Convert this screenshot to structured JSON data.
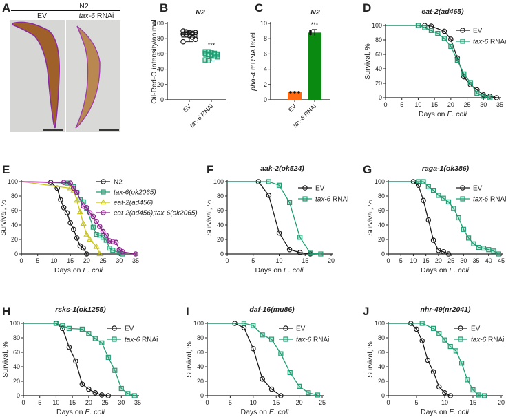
{
  "colors": {
    "black": "#1a1a1a",
    "green": "#1f9e74",
    "yellow": "#c9c41c",
    "purple": "#8e1f8e",
    "orange": "#ff6a13",
    "darkgreen": "#0b8a12"
  },
  "panel_a": {
    "letter": "A",
    "strain": "N2",
    "left_label": "EV",
    "right_label_italic": "tax-6",
    "right_label_rest": " RNAi"
  },
  "chart_data": [
    {
      "id": "B",
      "type": "box",
      "letter": "B",
      "title": "N2",
      "ylabel": "Oil-Red-O intensity/animal",
      "ylim": [
        0,
        100
      ],
      "yticks": [
        0,
        20,
        40,
        60,
        80,
        100
      ],
      "categories": [
        {
          "label": "EV",
          "italic": ""
        },
        {
          "label": " RNAi",
          "italic": "tax-6"
        }
      ],
      "series": [
        {
          "name": "EV",
          "color": "#1a1a1a",
          "marker": "circle",
          "values": [
            90,
            89,
            88,
            87,
            88,
            86,
            85,
            84,
            82,
            79,
            76
          ],
          "q1": 82,
          "median": 85,
          "q3": 88,
          "min": 76,
          "max": 90
        },
        {
          "name": "tax-6 RNAi",
          "color": "#1f9e74",
          "marker": "square",
          "values": [
            63,
            63,
            62,
            61,
            60,
            61,
            59,
            58,
            57,
            56,
            52,
            51
          ],
          "q1": 56,
          "median": 60,
          "q3": 62,
          "min": 51,
          "max": 63,
          "annotation": "***"
        }
      ]
    },
    {
      "id": "C",
      "type": "bar",
      "letter": "C",
      "title": "N2",
      "ylabel_italic": "pha-4",
      "ylabel_rest": " mRNA level",
      "ylim": [
        0,
        10
      ],
      "yticks": [
        0,
        2,
        4,
        6,
        8,
        10
      ],
      "categories": [
        {
          "label": "EV",
          "italic": ""
        },
        {
          "label": " RNAi",
          "italic": "tax-6"
        }
      ],
      "values": [
        1.0,
        8.8
      ],
      "errors": [
        0.05,
        0.4
      ],
      "points": [
        [
          1,
          1,
          1
        ],
        [
          9.0,
          8.6,
          8.8
        ]
      ],
      "bar_colors": [
        "#ff6a13",
        "#0b8a12"
      ],
      "annotations": [
        "",
        "***"
      ]
    },
    {
      "id": "D",
      "type": "line",
      "letter": "D",
      "title": "eat-2(ad465)",
      "xlabel": "Days on ",
      "xlabel_italic": "E. coli",
      "ylabel": "Survival, %",
      "xlim": [
        0,
        35
      ],
      "ylim": [
        0,
        100
      ],
      "xticks": [
        0,
        5,
        10,
        15,
        20,
        25,
        30,
        35
      ],
      "yticks": [
        0,
        20,
        40,
        60,
        80,
        100
      ],
      "series": [
        {
          "name": "EV",
          "italic": "",
          "color": "#1a1a1a",
          "marker": "circle",
          "x": [
            12,
            14,
            18,
            20,
            22,
            24,
            26,
            28,
            30,
            32,
            34
          ],
          "y": [
            100,
            99,
            92,
            81,
            55,
            29,
            18,
            11,
            4,
            2,
            0
          ]
        },
        {
          "name": " RNAi",
          "italic": "tax-6",
          "color": "#1f9e74",
          "marker": "square",
          "x": [
            10,
            12,
            14,
            16,
            18,
            20,
            22,
            24,
            26,
            28,
            30,
            32
          ],
          "y": [
            100,
            97,
            93,
            89,
            82,
            71,
            52,
            33,
            21,
            6,
            2,
            0
          ]
        }
      ]
    },
    {
      "id": "E",
      "type": "line",
      "letter": "E",
      "title": "",
      "xlabel": "Days on ",
      "xlabel_italic": "E. coli",
      "ylabel": "Survival, %",
      "xlim": [
        0,
        35
      ],
      "ylim": [
        0,
        100
      ],
      "xticks": [
        0,
        5,
        10,
        15,
        20,
        25,
        30,
        35
      ],
      "yticks": [
        0,
        20,
        40,
        60,
        80,
        100
      ],
      "series": [
        {
          "name": "N2",
          "italic": "",
          "color": "#1a1a1a",
          "marker": "circle",
          "x": [
            9,
            11,
            12,
            13,
            14,
            15,
            16,
            17,
            18,
            19,
            20
          ],
          "y": [
            99,
            91,
            75,
            64,
            57,
            43,
            34,
            22,
            11,
            8,
            0
          ]
        },
        {
          "name": "",
          "italic": "tax-6(ok2065)",
          "color": "#1f9e74",
          "marker": "square",
          "x": [
            14,
            16,
            17,
            18,
            19,
            20,
            22,
            23,
            24,
            25,
            26,
            27,
            28,
            30,
            31
          ],
          "y": [
            98,
            93,
            85,
            75,
            72,
            63,
            37,
            27,
            26,
            23,
            19,
            8,
            5,
            2,
            0
          ]
        },
        {
          "name": "",
          "italic": "eat-2(ad456)",
          "color": "#c9c41c",
          "marker": "triangle",
          "x": [
            15,
            16,
            17,
            18,
            19,
            20,
            21,
            23,
            24
          ],
          "y": [
            91,
            88,
            74,
            58,
            42,
            27,
            20,
            10,
            0
          ]
        },
        {
          "name": "",
          "italic": "eat-2(ad456);tax-6(ok2065)",
          "color": "#8e1f8e",
          "marker": "hex",
          "x": [
            13,
            15,
            16,
            17,
            19,
            20,
            21,
            22,
            23,
            24,
            25,
            26,
            27,
            28,
            29,
            30,
            31,
            35
          ],
          "y": [
            99,
            98,
            91,
            85,
            66,
            64,
            57,
            52,
            45,
            38,
            31,
            26,
            18,
            17,
            16,
            6,
            3,
            0
          ]
        }
      ]
    },
    {
      "id": "F",
      "type": "line",
      "letter": "F",
      "title": "aak-2(ok524)",
      "xlabel": "Days on ",
      "xlabel_italic": "E. coli",
      "ylabel": "Survival, %",
      "xlim": [
        0,
        20
      ],
      "ylim": [
        0,
        100
      ],
      "xticks": [
        0,
        5,
        10,
        15,
        20
      ],
      "yticks": [
        0,
        20,
        40,
        60,
        80,
        100
      ],
      "series": [
        {
          "name": "EV",
          "italic": "",
          "color": "#1a1a1a",
          "marker": "circle",
          "x": [
            6,
            8,
            10,
            12,
            14,
            16
          ],
          "y": [
            100,
            81,
            29,
            6,
            2,
            0
          ]
        },
        {
          "name": " RNAi",
          "italic": "tax-6",
          "color": "#1f9e74",
          "marker": "square",
          "x": [
            8,
            10,
            12,
            14,
            16,
            18
          ],
          "y": [
            100,
            95,
            71,
            23,
            1,
            0
          ]
        }
      ]
    },
    {
      "id": "G",
      "type": "line",
      "letter": "G",
      "title": "raga-1(ok386)",
      "xlabel": "Days on ",
      "xlabel_italic": "E. coli",
      "ylabel": "Survival, %",
      "xlim": [
        0,
        45
      ],
      "ylim": [
        0,
        100
      ],
      "xticks": [
        0,
        5,
        10,
        15,
        20,
        25,
        30,
        35,
        40,
        45
      ],
      "yticks": [
        0,
        20,
        40,
        60,
        80,
        100
      ],
      "series": [
        {
          "name": "EV",
          "italic": "",
          "color": "#1a1a1a",
          "marker": "circle",
          "x": [
            10,
            12,
            14,
            16,
            18,
            20,
            22,
            24
          ],
          "y": [
            100,
            95,
            74,
            47,
            19,
            5,
            3,
            0
          ]
        },
        {
          "name": " RNAi",
          "italic": "tax-6",
          "color": "#1f9e74",
          "marker": "square",
          "x": [
            12,
            14,
            16,
            18,
            20,
            22,
            24,
            26,
            28,
            30,
            32,
            34,
            36,
            38,
            40,
            42,
            44
          ],
          "y": [
            100,
            100,
            93,
            88,
            81,
            77,
            72,
            63,
            50,
            34,
            22,
            14,
            9,
            8,
            6,
            4,
            0
          ]
        }
      ]
    },
    {
      "id": "H",
      "type": "line",
      "letter": "H",
      "title": "rsks-1(ok1255)",
      "xlabel": "Days on ",
      "xlabel_italic": "E. coli",
      "ylabel": "Survival, %",
      "xlim": [
        0,
        35
      ],
      "ylim": [
        0,
        100
      ],
      "xticks": [
        0,
        5,
        10,
        15,
        20,
        25,
        30,
        35
      ],
      "yticks": [
        0,
        20,
        40,
        60,
        80,
        100
      ],
      "series": [
        {
          "name": "EV",
          "italic": "",
          "color": "#1a1a1a",
          "marker": "circle",
          "x": [
            10,
            12,
            14,
            16,
            18,
            20,
            22,
            24,
            26
          ],
          "y": [
            100,
            93,
            67,
            48,
            16,
            9,
            4,
            1,
            0
          ]
        },
        {
          "name": " RNAi",
          "italic": "tax-6",
          "color": "#1f9e74",
          "marker": "square",
          "x": [
            10,
            12,
            14,
            18,
            20,
            22,
            24,
            26,
            28,
            30,
            32,
            34
          ],
          "y": [
            100,
            97,
            93,
            92,
            86,
            79,
            73,
            53,
            35,
            10,
            3,
            0
          ]
        }
      ]
    },
    {
      "id": "I",
      "type": "line",
      "letter": "I",
      "title": "daf-16(mu86)",
      "xlabel": "Days on ",
      "xlabel_italic": "E. coli",
      "ylabel": "Survival, %",
      "xlim": [
        0,
        25
      ],
      "ylim": [
        0,
        100
      ],
      "xticks": [
        0,
        5,
        10,
        15,
        20,
        25
      ],
      "yticks": [
        0,
        20,
        40,
        60,
        80,
        100
      ],
      "series": [
        {
          "name": "EV",
          "italic": "",
          "color": "#1a1a1a",
          "marker": "circle",
          "x": [
            6,
            8,
            10,
            12,
            14,
            16
          ],
          "y": [
            100,
            94,
            65,
            23,
            9,
            0
          ]
        },
        {
          "name": " RNAi",
          "italic": "tax-6",
          "color": "#1f9e74",
          "marker": "square",
          "x": [
            8,
            10,
            12,
            14,
            16,
            18,
            20,
            22,
            24
          ],
          "y": [
            100,
            97,
            84,
            78,
            58,
            32,
            13,
            4,
            1
          ]
        }
      ]
    },
    {
      "id": "J",
      "type": "line",
      "letter": "J",
      "title": "nhr-49(nr2041)",
      "xlabel": "Days on ",
      "xlabel_italic": "E. coli",
      "ylabel": "Survival, %",
      "xlim": [
        0,
        20
      ],
      "ylim": [
        0,
        100
      ],
      "xticks": [
        0,
        5,
        10,
        15,
        20
      ],
      "yticks": [
        0,
        20,
        40,
        60,
        80,
        100
      ],
      "series": [
        {
          "name": "EV",
          "italic": "",
          "color": "#1a1a1a",
          "marker": "circle",
          "x": [
            4,
            5,
            6,
            7,
            8,
            9,
            10,
            11
          ],
          "y": [
            100,
            92,
            76,
            49,
            33,
            12,
            4,
            0
          ]
        },
        {
          "name": " RNAi",
          "italic": "tax-6",
          "color": "#1f9e74",
          "marker": "square",
          "x": [
            6,
            8,
            9,
            10,
            11,
            12,
            13,
            14,
            15,
            16,
            17
          ],
          "y": [
            100,
            93,
            86,
            77,
            68,
            62,
            45,
            22,
            8,
            1,
            0
          ]
        }
      ]
    }
  ]
}
